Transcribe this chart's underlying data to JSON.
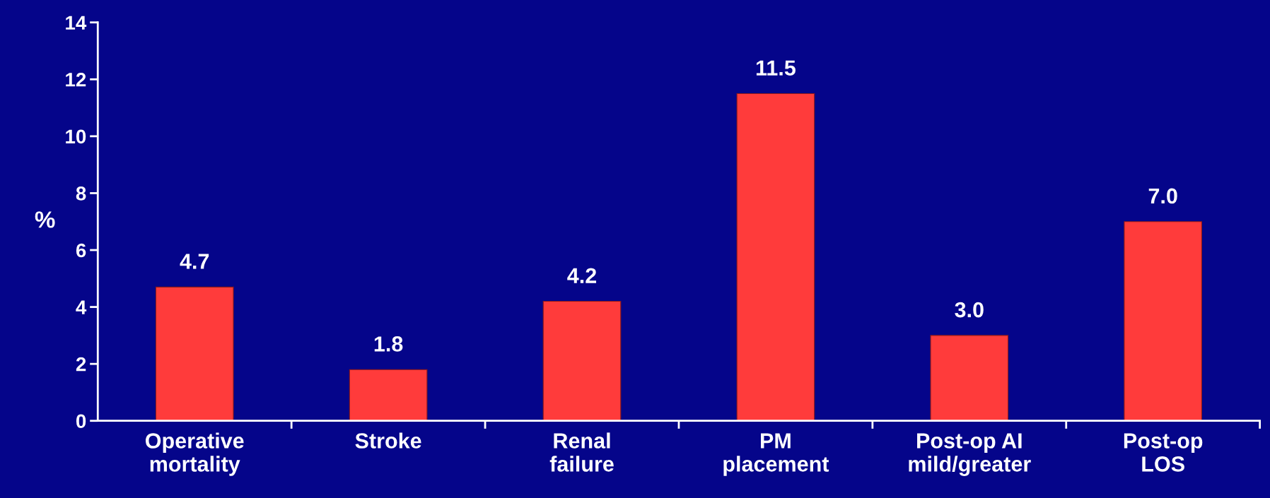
{
  "chart_data": {
    "type": "bar",
    "ylabel": "%",
    "categories": [
      "Operative\nmortality",
      "Stroke",
      "Renal\nfailure",
      "PM\nplacement",
      "Post-op AI\nmild/greater",
      "Post-op\nLOS"
    ],
    "values": [
      4.7,
      1.8,
      4.2,
      11.5,
      3.0,
      7.0
    ],
    "value_labels": [
      "4.7",
      "1.8",
      "4.2",
      "11.5",
      "3.0",
      "7.0"
    ],
    "color": "#ff3b3b",
    "ylim": [
      0,
      14
    ],
    "yticks": [
      0,
      2,
      4,
      6,
      8,
      10,
      12,
      14
    ],
    "grid": false,
    "legend": false
  }
}
